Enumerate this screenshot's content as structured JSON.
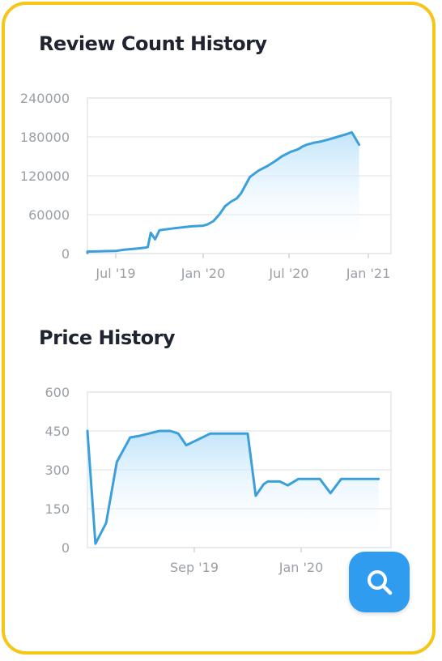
{
  "colors": {
    "frame": "#f5c518",
    "line": "#3b9fdc",
    "fill": "#bfe3fb",
    "grid": "#e3e6ea",
    "fab": "#2f9cf0"
  },
  "review_chart": {
    "title": "Review Count History",
    "y_ticks": [
      "240000",
      "180000",
      "120000",
      "60000",
      "0"
    ],
    "x_ticks": [
      "Jul '19",
      "Jan '20",
      "Jul '20",
      "Jan '21"
    ]
  },
  "price_chart": {
    "title": "Price History",
    "y_ticks": [
      "600",
      "450",
      "300",
      "150",
      "0"
    ],
    "x_ticks": [
      "Sep '19",
      "Jan '20"
    ]
  },
  "search_button": {
    "icon": "search-icon"
  },
  "chart_data": [
    {
      "type": "area",
      "title": "Review Count History",
      "xlabel": "",
      "ylabel": "",
      "ylim": [
        0,
        240000
      ],
      "x_ticks": [
        "Jul '19",
        "Jan '20",
        "Jul '20",
        "Jan '21"
      ],
      "x": [
        -3.5,
        -2.5,
        -1.5,
        0.0,
        0.3,
        0.8,
        1.0,
        1.1,
        1.2,
        1.35,
        1.5,
        2.0,
        2.6,
        3.0,
        3.15,
        3.35,
        3.55,
        3.75,
        3.95,
        4.15,
        4.3,
        4.6,
        4.9,
        5.2,
        5.45,
        5.7,
        6.0,
        6.2,
        6.3,
        6.4,
        6.55,
        6.8,
        7.05,
        7.3,
        7.6,
        7.9,
        8.1,
        8.35
      ],
      "series": [
        {
          "values": [
            1000,
            1500,
            3000,
            4000,
            6000,
            8000,
            9000,
            10000,
            32000,
            22000,
            36000,
            39000,
            42000,
            43000,
            45000,
            50000,
            60000,
            73000,
            80000,
            85000,
            93000,
            118000,
            128000,
            135000,
            142000,
            150000,
            157000,
            160000,
            162000,
            165000,
            168000,
            171000,
            173000,
            176000,
            180000,
            184000,
            187000,
            168000
          ]
        }
      ]
    },
    {
      "type": "area",
      "title": "Price History",
      "xlabel": "",
      "ylabel": "",
      "ylim": [
        0,
        600
      ],
      "x_ticks": [
        "Sep '19",
        "Jan '20"
      ],
      "x": [
        -4.0,
        -3.7,
        -3.3,
        -2.9,
        -2.4,
        -2.1,
        -1.7,
        -1.3,
        -0.9,
        -0.6,
        -0.3,
        0.0,
        0.6,
        0.9,
        1.2,
        1.6,
        2.0,
        2.3,
        2.6,
        2.75,
        2.9,
        3.2,
        3.5,
        3.9,
        4.0,
        4.3,
        4.7,
        5.1,
        5.5,
        5.8,
        6.0,
        6.2,
        6.5,
        6.9
      ],
      "series": [
        {
          "values": [
            450,
            15,
            95,
            330,
            425,
            430,
            440,
            450,
            450,
            440,
            395,
            410,
            440,
            440,
            440,
            440,
            440,
            200,
            245,
            255,
            255,
            255,
            240,
            265,
            265,
            265,
            265,
            210,
            265,
            265,
            265,
            265,
            265,
            265
          ]
        }
      ]
    }
  ]
}
